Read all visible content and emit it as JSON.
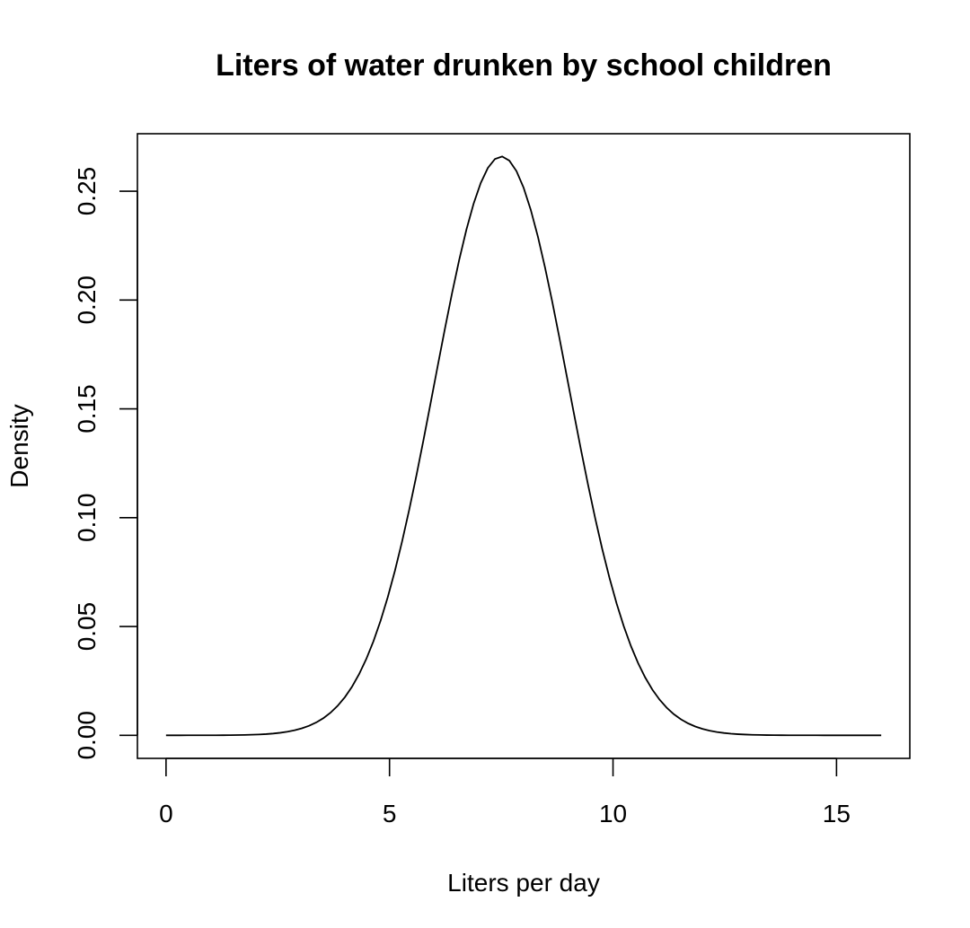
{
  "chart_data": {
    "type": "line",
    "title": "Liters of water drunken by school children",
    "xlabel": "Liters per day",
    "ylabel": "Density",
    "xlim": [
      -0.64,
      16.64
    ],
    "ylim": [
      -0.0106,
      0.2764
    ],
    "x_ticks": [
      0,
      5,
      10,
      15
    ],
    "x_tick_labels": [
      "0",
      "5",
      "10",
      "15"
    ],
    "y_ticks": [
      0.0,
      0.05,
      0.1,
      0.15,
      0.2,
      0.25
    ],
    "y_tick_labels": [
      "0.00",
      "0.05",
      "0.10",
      "0.15",
      "0.20",
      "0.25"
    ],
    "grid": false,
    "series": [
      {
        "name": "Density",
        "distribution": "normal",
        "mean": 7.5,
        "sd": 1.5,
        "x_range": [
          0,
          16
        ],
        "n_points": 101,
        "color": "#000000"
      }
    ]
  }
}
